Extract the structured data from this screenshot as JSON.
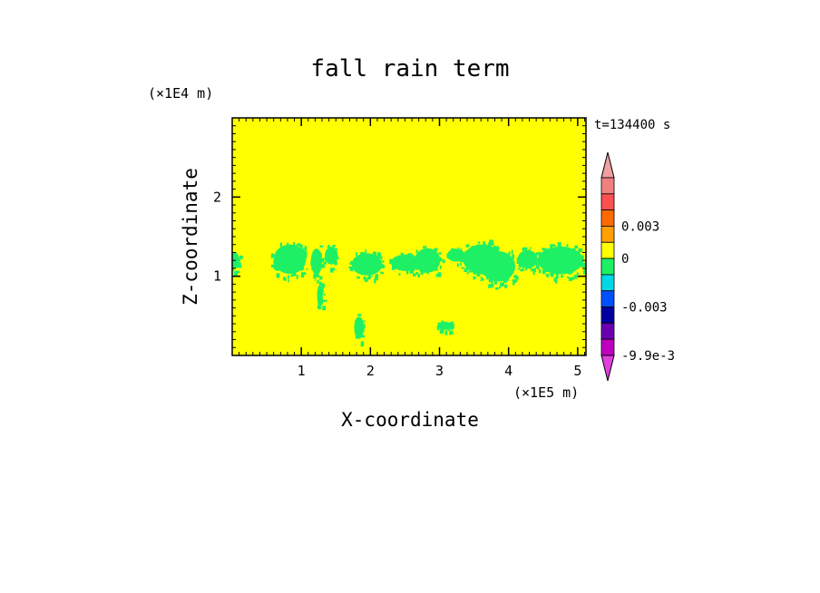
{
  "chart_data": {
    "type": "heatmap",
    "title": "fall rain term",
    "xlabel": "X-coordinate",
    "ylabel": "Z-coordinate",
    "x_unit": "(×1E5 m)",
    "y_unit": "(×1E4 m)",
    "time_label": "t=134400 s",
    "xlim": [
      0,
      5.12
    ],
    "ylim": [
      0,
      3.0
    ],
    "x_ticks": [
      "1",
      "2",
      "3",
      "4",
      "5"
    ],
    "y_ticks": [
      "1",
      "2"
    ],
    "background_color": "#ffff00",
    "field_color": "#1ef066",
    "field_regions": [
      {
        "x": [
          -0.05,
          0.12
        ],
        "z": [
          1.05,
          1.35
        ]
      },
      {
        "x": [
          0.55,
          1.12
        ],
        "z": [
          0.95,
          1.48
        ]
      },
      {
        "x": [
          1.12,
          1.32
        ],
        "z": [
          0.95,
          1.42
        ]
      },
      {
        "x": [
          1.22,
          1.32
        ],
        "z": [
          0.55,
          0.95
        ]
      },
      {
        "x": [
          1.32,
          1.55
        ],
        "z": [
          1.1,
          1.42
        ]
      },
      {
        "x": [
          1.68,
          2.22
        ],
        "z": [
          0.95,
          1.35
        ]
      },
      {
        "x": [
          1.75,
          1.92
        ],
        "z": [
          0.15,
          0.55
        ]
      },
      {
        "x": [
          2.25,
          2.78
        ],
        "z": [
          1.02,
          1.32
        ]
      },
      {
        "x": [
          2.6,
          3.05
        ],
        "z": [
          0.98,
          1.42
        ]
      },
      {
        "x": [
          3.08,
          3.4
        ],
        "z": [
          1.15,
          1.38
        ]
      },
      {
        "x": [
          2.95,
          3.2
        ],
        "z": [
          0.3,
          0.45
        ]
      },
      {
        "x": [
          3.28,
          3.95
        ],
        "z": [
          0.95,
          1.48
        ]
      },
      {
        "x": [
          3.55,
          4.15
        ],
        "z": [
          0.85,
          1.4
        ]
      },
      {
        "x": [
          4.1,
          4.45
        ],
        "z": [
          1.05,
          1.38
        ]
      },
      {
        "x": [
          4.35,
          5.15
        ],
        "z": [
          0.95,
          1.45
        ]
      }
    ],
    "colorbar": {
      "labels": [
        "0.003",
        "0",
        "-0.003",
        "-9.9e-3"
      ],
      "label_values": [
        0.003,
        0,
        -0.003,
        -0.0099
      ],
      "bands": [
        {
          "color": "#f08080"
        },
        {
          "color": "#ff5050"
        },
        {
          "color": "#ff6a00"
        },
        {
          "color": "#ffa000"
        },
        {
          "color": "#ffff00"
        },
        {
          "color": "#1ef066"
        },
        {
          "color": "#00d8e8"
        },
        {
          "color": "#0050ff"
        },
        {
          "color": "#0000a0"
        },
        {
          "color": "#6a00b0"
        },
        {
          "color": "#c000c0"
        }
      ],
      "top_arrow_color": "#f0a0a0",
      "bottom_arrow_color": "#e040e0"
    }
  }
}
